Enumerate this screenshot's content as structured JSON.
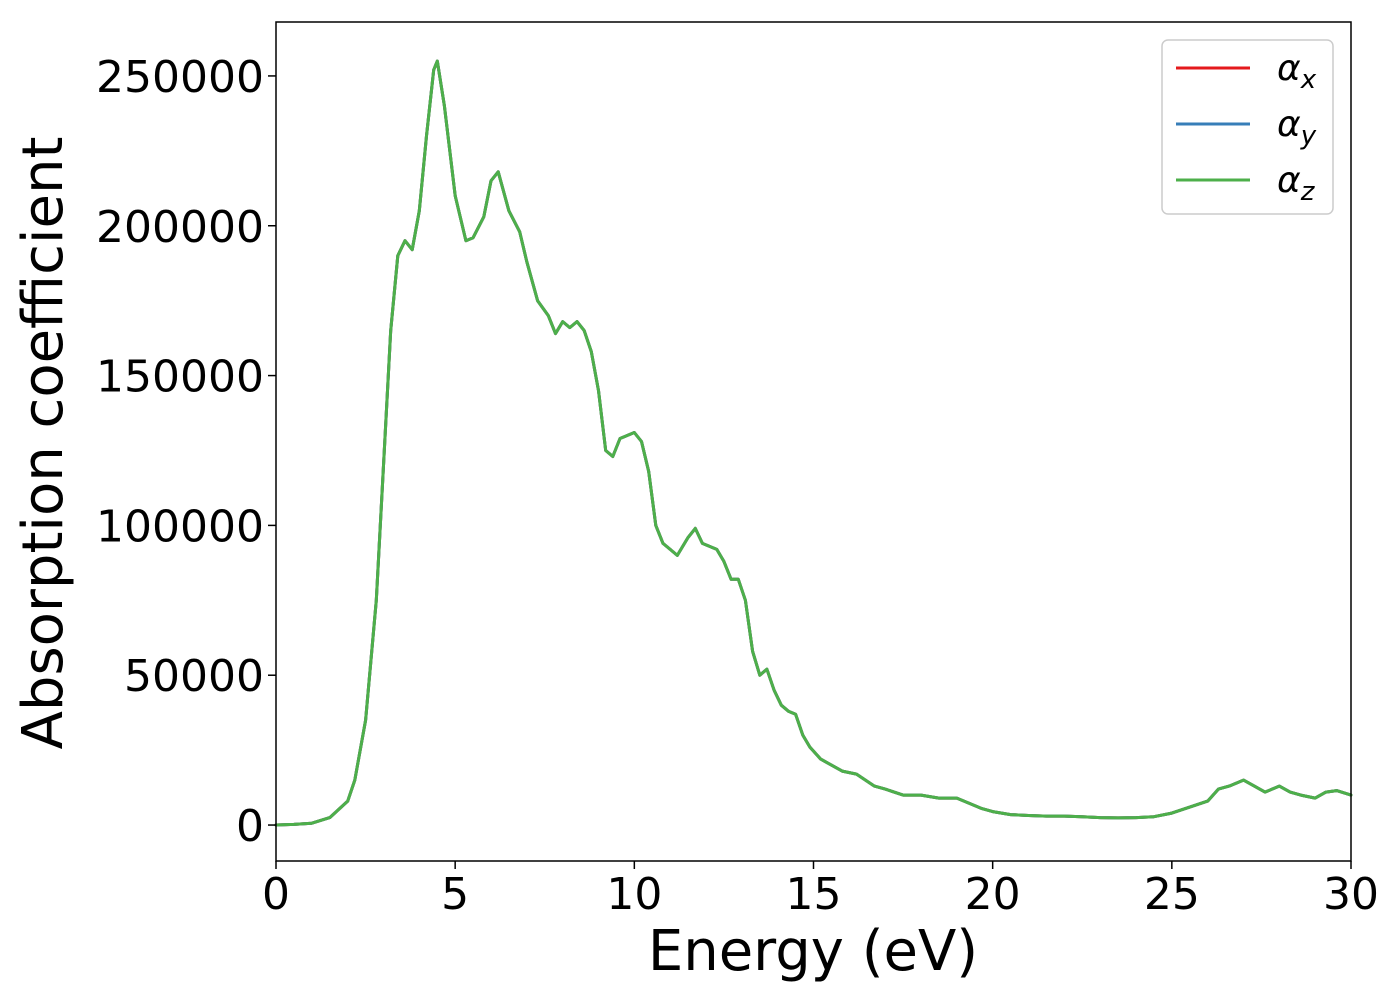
{
  "chart_data": {
    "type": "line",
    "xlabel": "Energy (eV)",
    "ylabel": "Absorption coefficient",
    "xlim": [
      0,
      30
    ],
    "ylim": [
      -12000,
      268000
    ],
    "x_ticks": [
      "0",
      "5",
      "10",
      "15",
      "20",
      "25",
      "30"
    ],
    "y_ticks": [
      "0",
      "50000",
      "100000",
      "150000",
      "200000",
      "250000"
    ],
    "x_tick_values": [
      0,
      5,
      10,
      15,
      20,
      25,
      30
    ],
    "y_tick_values": [
      0,
      50000,
      100000,
      150000,
      200000,
      250000
    ],
    "grid": false,
    "legend_position": "top-right",
    "series": [
      {
        "name": "x",
        "symbol": "α",
        "color": "#e41a1c"
      },
      {
        "name": "y",
        "symbol": "α",
        "color": "#377eb8"
      },
      {
        "name": "z",
        "symbol": "α",
        "color": "#4daf4a"
      }
    ],
    "x": [
      0,
      0.5,
      1.0,
      1.5,
      2.0,
      2.2,
      2.5,
      2.8,
      3.0,
      3.2,
      3.4,
      3.6,
      3.8,
      4.0,
      4.2,
      4.4,
      4.5,
      4.7,
      5.0,
      5.3,
      5.5,
      5.8,
      6.0,
      6.2,
      6.5,
      6.8,
      7.0,
      7.3,
      7.6,
      7.8,
      8.0,
      8.2,
      8.4,
      8.6,
      8.8,
      9.0,
      9.2,
      9.4,
      9.6,
      9.8,
      10.0,
      10.2,
      10.4,
      10.6,
      10.8,
      11.0,
      11.2,
      11.5,
      11.7,
      11.9,
      12.1,
      12.3,
      12.5,
      12.7,
      12.9,
      13.1,
      13.3,
      13.5,
      13.7,
      13.9,
      14.1,
      14.3,
      14.5,
      14.7,
      14.9,
      15.2,
      15.5,
      15.8,
      16.2,
      16.7,
      17.0,
      17.5,
      18.0,
      18.5,
      19.0,
      19.4,
      19.7,
      20.0,
      20.5,
      21.0,
      21.5,
      22.0,
      22.5,
      23.0,
      23.5,
      24.0,
      24.5,
      25.0,
      25.5,
      26.0,
      26.3,
      26.6,
      27.0,
      27.3,
      27.6,
      28.0,
      28.3,
      28.6,
      29.0,
      29.3,
      29.6,
      30.0
    ],
    "y": [
      0,
      200,
      600,
      2500,
      8000,
      15000,
      35000,
      75000,
      120000,
      165000,
      190000,
      195000,
      192000,
      205000,
      230000,
      252000,
      255000,
      240000,
      210000,
      195000,
      196000,
      203000,
      215000,
      218000,
      205000,
      198000,
      188000,
      175000,
      170000,
      164000,
      168000,
      166000,
      168000,
      165000,
      158000,
      145000,
      125000,
      123000,
      129000,
      130000,
      131000,
      128000,
      118000,
      100000,
      94000,
      92000,
      90000,
      96000,
      99000,
      94000,
      93000,
      92000,
      88000,
      82000,
      82000,
      75000,
      58000,
      50000,
      52000,
      45000,
      40000,
      38000,
      37000,
      30000,
      26000,
      22000,
      20000,
      18000,
      17000,
      13000,
      12000,
      10000,
      10000,
      9000,
      9000,
      7000,
      5500,
      4500,
      3500,
      3200,
      3000,
      3000,
      2800,
      2500,
      2400,
      2500,
      2800,
      4000,
      6000,
      8000,
      12000,
      13000,
      15000,
      13000,
      11000,
      13000,
      11000,
      10000,
      9000,
      11000,
      11500,
      10000
    ]
  }
}
